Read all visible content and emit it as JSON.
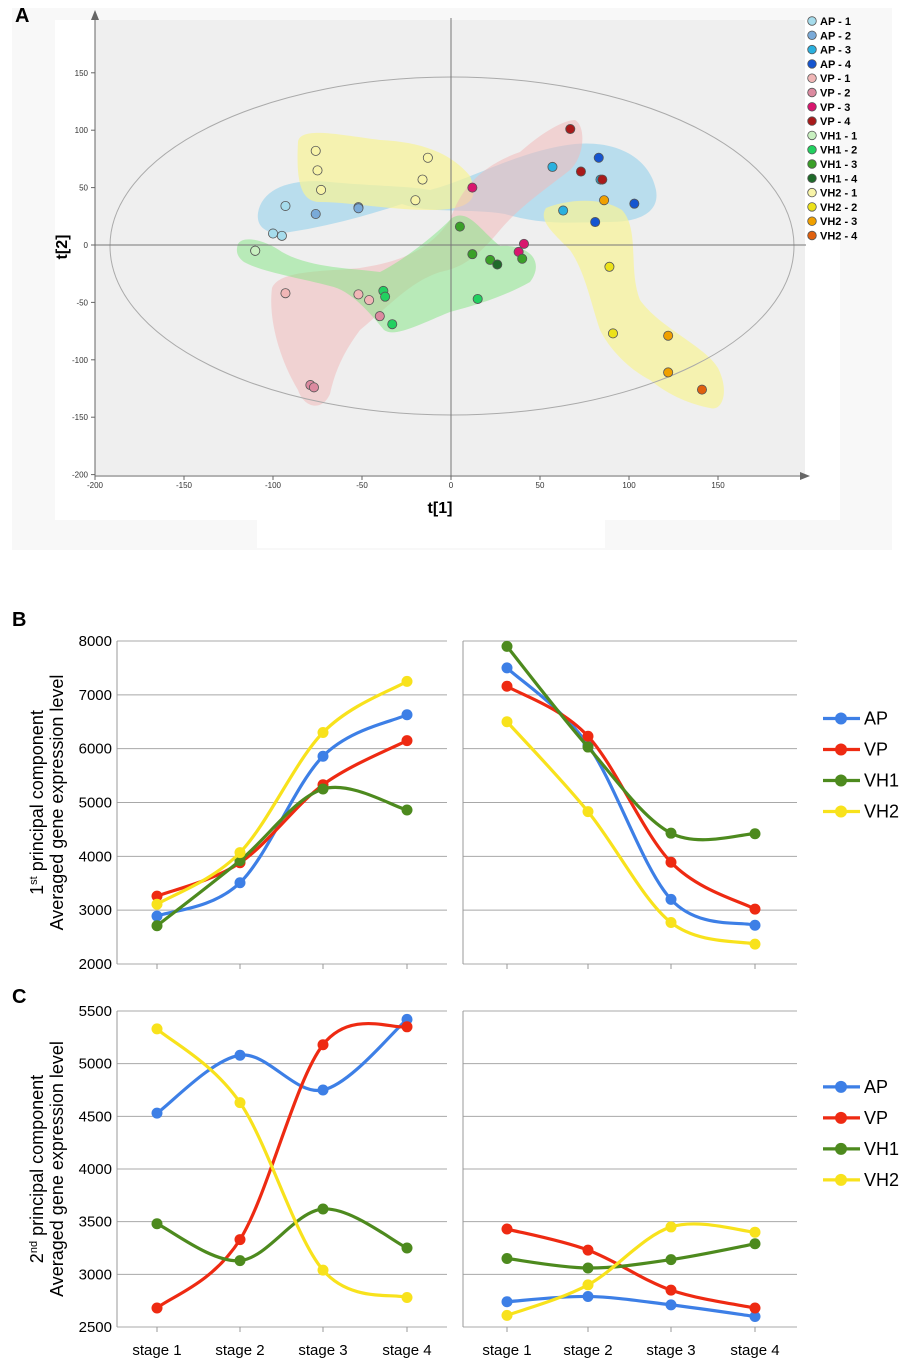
{
  "chart_data": [
    {
      "panel": "A",
      "type": "scatter",
      "xlabel": "t[1]",
      "ylabel": "t[2]",
      "xlim": [
        -200,
        200
      ],
      "ylim": [
        -200,
        200
      ],
      "xticks": [
        -200,
        -150,
        -100,
        -50,
        0,
        50,
        100,
        150
      ],
      "yticks": [
        -200,
        -150,
        -100,
        -50,
        0,
        50,
        100,
        150
      ],
      "legend_position": "top-right",
      "series": [
        {
          "name": "AP - 1",
          "color": "#a6dcec",
          "points": [
            [
              -100,
              10
            ],
            [
              -95,
              8
            ],
            [
              -93,
              34
            ]
          ]
        },
        {
          "name": "AP - 2",
          "color": "#7aaad8",
          "points": [
            [
              -76,
              27
            ],
            [
              -52,
              33
            ],
            [
              -52,
              32
            ]
          ]
        },
        {
          "name": "AP - 3",
          "color": "#2ab0de",
          "points": [
            [
              57,
              68
            ],
            [
              63,
              30
            ],
            [
              84,
              57
            ]
          ]
        },
        {
          "name": "AP - 4",
          "color": "#1555d0",
          "points": [
            [
              83,
              76
            ],
            [
              81,
              20
            ],
            [
              103,
              36
            ]
          ]
        },
        {
          "name": "VP - 1",
          "color": "#f0b6b6",
          "points": [
            [
              -93,
              -42
            ],
            [
              -52,
              -43
            ],
            [
              -46,
              -48
            ]
          ]
        },
        {
          "name": "VP - 2",
          "color": "#dc8aa0",
          "points": [
            [
              -40,
              -62
            ],
            [
              -79,
              -122
            ],
            [
              -77,
              -124
            ]
          ]
        },
        {
          "name": "VP - 3",
          "color": "#d8166e",
          "points": [
            [
              12,
              50
            ],
            [
              41,
              1
            ],
            [
              38,
              -6
            ]
          ]
        },
        {
          "name": "VP - 4",
          "color": "#a81a1a",
          "points": [
            [
              67,
              101
            ],
            [
              73,
              64
            ],
            [
              85,
              57
            ]
          ]
        },
        {
          "name": "VH1 - 1",
          "color": "#c8f0c0",
          "points": [
            [
              -110,
              -5
            ],
            [
              -110,
              -5
            ]
          ]
        },
        {
          "name": "VH1 - 2",
          "color": "#22d060",
          "points": [
            [
              -38,
              -40
            ],
            [
              -37,
              -45
            ],
            [
              -33,
              -69
            ],
            [
              15,
              -47
            ]
          ]
        },
        {
          "name": "VH1 - 3",
          "color": "#3aa028",
          "points": [
            [
              5,
              16
            ],
            [
              12,
              -8
            ],
            [
              22,
              -13
            ],
            [
              40,
              -12
            ]
          ]
        },
        {
          "name": "VH1 - 4",
          "color": "#1f6a2a",
          "points": [
            [
              26,
              -17
            ]
          ]
        },
        {
          "name": "VH2 - 1",
          "color": "#f8f4a8",
          "points": [
            [
              -76,
              82
            ],
            [
              -75,
              65
            ],
            [
              -73,
              48
            ],
            [
              -20,
              39
            ],
            [
              -16,
              57
            ],
            [
              -13,
              76
            ]
          ]
        },
        {
          "name": "VH2 - 2",
          "color": "#ece21a",
          "points": [
            [
              89,
              -19
            ],
            [
              91,
              -77
            ]
          ]
        },
        {
          "name": "VH2 - 3",
          "color": "#f0a000",
          "points": [
            [
              86,
              39
            ],
            [
              122,
              -79
            ],
            [
              122,
              -111
            ]
          ]
        },
        {
          "name": "VH2 - 4",
          "color": "#e0600e",
          "points": [
            [
              141,
              -126
            ]
          ]
        }
      ]
    },
    {
      "panel": "B",
      "type": "line",
      "title": "",
      "ylabel_line1": "1st principal component",
      "ylabel_sup": "st",
      "ylabel_prefix": "1",
      "ylabel_rest": " principal component",
      "ylabel_line2": "Averaged gene expression level",
      "ylim": [
        2000,
        8000
      ],
      "yticks": [
        2000,
        3000,
        4000,
        5000,
        6000,
        7000,
        8000
      ],
      "categories": [
        "stage 1",
        "stage 2",
        "stage 3",
        "stage 4"
      ],
      "left": {
        "series": [
          {
            "name": "AP",
            "color": "#3d7fe6",
            "values": [
              2890,
              3510,
              5860,
              6630
            ]
          },
          {
            "name": "VP",
            "color": "#ee2a12",
            "values": [
              3260,
              3880,
              5330,
              6150
            ]
          },
          {
            "name": "VH1",
            "color": "#4d8a1e",
            "values": [
              2710,
              3920,
              5250,
              4860
            ]
          },
          {
            "name": "VH2",
            "color": "#f8e21c",
            "values": [
              3110,
              4070,
              6300,
              7250
            ]
          }
        ]
      },
      "right": {
        "series": [
          {
            "name": "AP",
            "color": "#3d7fe6",
            "values": [
              7500,
              6070,
              3200,
              2720
            ]
          },
          {
            "name": "VP",
            "color": "#ee2a12",
            "values": [
              7160,
              6230,
              3890,
              3020
            ]
          },
          {
            "name": "VH1",
            "color": "#4d8a1e",
            "values": [
              7900,
              6030,
              4430,
              4420
            ]
          },
          {
            "name": "VH2",
            "color": "#f8e21c",
            "values": [
              6500,
              4830,
              2770,
              2370
            ]
          }
        ]
      },
      "legend": [
        "AP",
        "VP",
        "VH1",
        "VH2"
      ],
      "legend_position": "right"
    },
    {
      "panel": "C",
      "type": "line",
      "ylabel_prefix": "2",
      "ylabel_sup": "nd",
      "ylabel_rest": " principal component",
      "ylabel_line2": "Averaged gene expression level",
      "ylim": [
        2500,
        5500
      ],
      "yticks": [
        2500,
        3000,
        3500,
        4000,
        4500,
        5000,
        5500
      ],
      "categories": [
        "stage 1",
        "stage 2",
        "stage 3",
        "stage 4"
      ],
      "left": {
        "series": [
          {
            "name": "AP",
            "color": "#3d7fe6",
            "values": [
              4530,
              5080,
              4750,
              5420
            ]
          },
          {
            "name": "VP",
            "color": "#ee2a12",
            "values": [
              2680,
              3330,
              5180,
              5350
            ]
          },
          {
            "name": "VH1",
            "color": "#4d8a1e",
            "values": [
              3480,
              3130,
              3620,
              3250
            ]
          },
          {
            "name": "VH2",
            "color": "#f8e21c",
            "values": [
              5330,
              4630,
              3040,
              2780
            ]
          }
        ]
      },
      "right": {
        "series": [
          {
            "name": "AP",
            "color": "#3d7fe6",
            "values": [
              2740,
              2790,
              2710,
              2600
            ]
          },
          {
            "name": "VP",
            "color": "#ee2a12",
            "values": [
              3430,
              3230,
              2850,
              2680
            ]
          },
          {
            "name": "VH1",
            "color": "#4d8a1e",
            "values": [
              3150,
              3060,
              3140,
              3290
            ]
          },
          {
            "name": "VH2",
            "color": "#f8e21c",
            "values": [
              2610,
              2900,
              3450,
              3400
            ]
          }
        ]
      },
      "legend": [
        "AP",
        "VP",
        "VH1",
        "VH2"
      ],
      "legend_position": "right"
    }
  ],
  "panel_labels": {
    "a": "A",
    "b": "B",
    "c": "C"
  },
  "colors": {
    "grid": "#a8a8a8",
    "plot_bg": "#eeeeee",
    "ellipse": "#aaaaaa"
  }
}
